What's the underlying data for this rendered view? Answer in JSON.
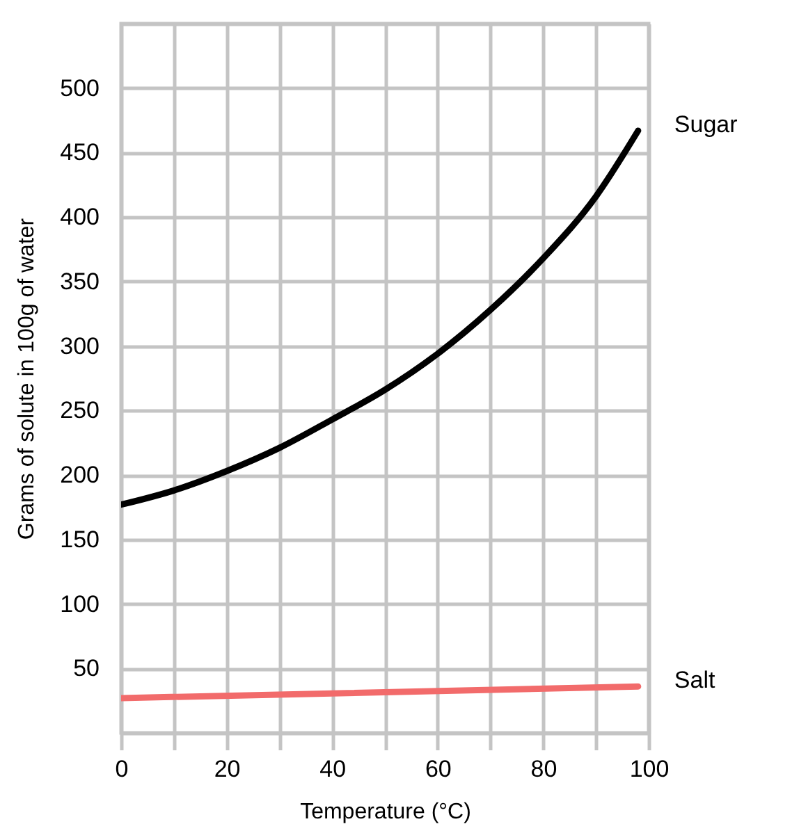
{
  "chart_data": {
    "type": "line",
    "xlabel": "Temperature (°C)",
    "ylabel": "Grams of solute in 100g of water",
    "x": [
      0,
      10,
      20,
      30,
      40,
      50,
      60,
      70,
      80,
      90,
      98
    ],
    "series": [
      {
        "name": "Sugar",
        "color": "#000000",
        "values": [
          177,
          188,
          203,
          221,
          243,
          266,
          294,
          328,
          368,
          416,
          467
        ]
      },
      {
        "name": "Salt",
        "color": "#f26b6b",
        "x": [
          0,
          98
        ],
        "values": [
          27,
          36
        ]
      }
    ],
    "xlim": [
      0,
      100
    ],
    "xticks": [
      0,
      {
        "value": 10,
        "label": null
      },
      20,
      {
        "value": 30,
        "label": null
      },
      40,
      {
        "value": 50,
        "label": null
      },
      60,
      {
        "value": 70,
        "label": null
      },
      80,
      {
        "value": 90,
        "label": null
      },
      100
    ],
    "ylim": [
      0,
      550
    ],
    "yticks": [
      {
        "value": 0,
        "label": null
      },
      50,
      100,
      150,
      200,
      250,
      300,
      350,
      400,
      450,
      500,
      {
        "value": 550,
        "label": null
      }
    ],
    "grid": true,
    "legend": false
  }
}
